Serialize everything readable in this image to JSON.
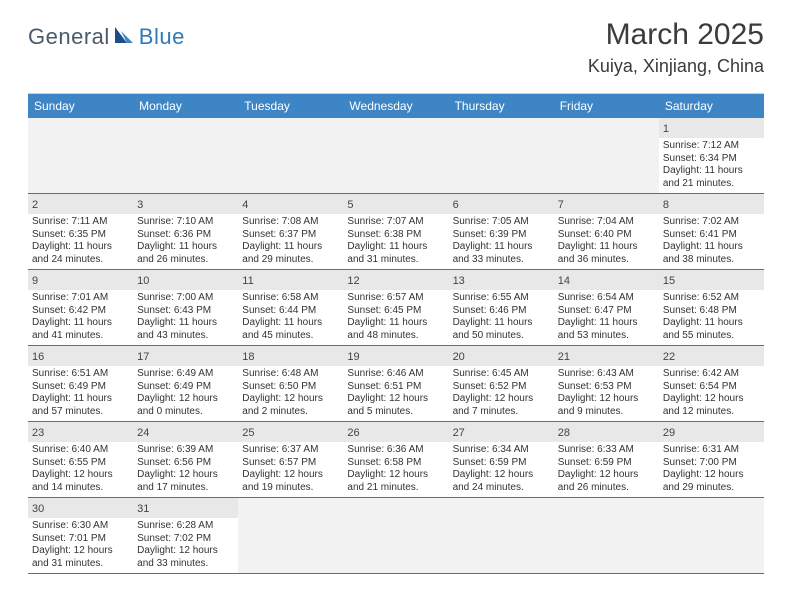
{
  "logo": {
    "text1": "General",
    "text2": "Blue"
  },
  "title": "March 2025",
  "location": "Kuiya, Xinjiang, China",
  "colors": {
    "header_bg": "#3e85c6",
    "header_text": "#ffffff",
    "cell_border": "#2f7ab8",
    "daynum_bg": "#e8e8e8",
    "blank_bg": "#f2f2f2",
    "logo_gray": "#4a5a6a",
    "logo_blue": "#2f7ab8"
  },
  "dow": [
    "Sunday",
    "Monday",
    "Tuesday",
    "Wednesday",
    "Thursday",
    "Friday",
    "Saturday"
  ],
  "weeks": [
    [
      {
        "blank": true
      },
      {
        "blank": true
      },
      {
        "blank": true
      },
      {
        "blank": true
      },
      {
        "blank": true
      },
      {
        "blank": true
      },
      {
        "day": "1",
        "sunrise": "Sunrise: 7:12 AM",
        "sunset": "Sunset: 6:34 PM",
        "daylight": "Daylight: 11 hours and 21 minutes."
      }
    ],
    [
      {
        "day": "2",
        "sunrise": "Sunrise: 7:11 AM",
        "sunset": "Sunset: 6:35 PM",
        "daylight": "Daylight: 11 hours and 24 minutes."
      },
      {
        "day": "3",
        "sunrise": "Sunrise: 7:10 AM",
        "sunset": "Sunset: 6:36 PM",
        "daylight": "Daylight: 11 hours and 26 minutes."
      },
      {
        "day": "4",
        "sunrise": "Sunrise: 7:08 AM",
        "sunset": "Sunset: 6:37 PM",
        "daylight": "Daylight: 11 hours and 29 minutes."
      },
      {
        "day": "5",
        "sunrise": "Sunrise: 7:07 AM",
        "sunset": "Sunset: 6:38 PM",
        "daylight": "Daylight: 11 hours and 31 minutes."
      },
      {
        "day": "6",
        "sunrise": "Sunrise: 7:05 AM",
        "sunset": "Sunset: 6:39 PM",
        "daylight": "Daylight: 11 hours and 33 minutes."
      },
      {
        "day": "7",
        "sunrise": "Sunrise: 7:04 AM",
        "sunset": "Sunset: 6:40 PM",
        "daylight": "Daylight: 11 hours and 36 minutes."
      },
      {
        "day": "8",
        "sunrise": "Sunrise: 7:02 AM",
        "sunset": "Sunset: 6:41 PM",
        "daylight": "Daylight: 11 hours and 38 minutes."
      }
    ],
    [
      {
        "day": "9",
        "sunrise": "Sunrise: 7:01 AM",
        "sunset": "Sunset: 6:42 PM",
        "daylight": "Daylight: 11 hours and 41 minutes."
      },
      {
        "day": "10",
        "sunrise": "Sunrise: 7:00 AM",
        "sunset": "Sunset: 6:43 PM",
        "daylight": "Daylight: 11 hours and 43 minutes."
      },
      {
        "day": "11",
        "sunrise": "Sunrise: 6:58 AM",
        "sunset": "Sunset: 6:44 PM",
        "daylight": "Daylight: 11 hours and 45 minutes."
      },
      {
        "day": "12",
        "sunrise": "Sunrise: 6:57 AM",
        "sunset": "Sunset: 6:45 PM",
        "daylight": "Daylight: 11 hours and 48 minutes."
      },
      {
        "day": "13",
        "sunrise": "Sunrise: 6:55 AM",
        "sunset": "Sunset: 6:46 PM",
        "daylight": "Daylight: 11 hours and 50 minutes."
      },
      {
        "day": "14",
        "sunrise": "Sunrise: 6:54 AM",
        "sunset": "Sunset: 6:47 PM",
        "daylight": "Daylight: 11 hours and 53 minutes."
      },
      {
        "day": "15",
        "sunrise": "Sunrise: 6:52 AM",
        "sunset": "Sunset: 6:48 PM",
        "daylight": "Daylight: 11 hours and 55 minutes."
      }
    ],
    [
      {
        "day": "16",
        "sunrise": "Sunrise: 6:51 AM",
        "sunset": "Sunset: 6:49 PM",
        "daylight": "Daylight: 11 hours and 57 minutes."
      },
      {
        "day": "17",
        "sunrise": "Sunrise: 6:49 AM",
        "sunset": "Sunset: 6:49 PM",
        "daylight": "Daylight: 12 hours and 0 minutes."
      },
      {
        "day": "18",
        "sunrise": "Sunrise: 6:48 AM",
        "sunset": "Sunset: 6:50 PM",
        "daylight": "Daylight: 12 hours and 2 minutes."
      },
      {
        "day": "19",
        "sunrise": "Sunrise: 6:46 AM",
        "sunset": "Sunset: 6:51 PM",
        "daylight": "Daylight: 12 hours and 5 minutes."
      },
      {
        "day": "20",
        "sunrise": "Sunrise: 6:45 AM",
        "sunset": "Sunset: 6:52 PM",
        "daylight": "Daylight: 12 hours and 7 minutes."
      },
      {
        "day": "21",
        "sunrise": "Sunrise: 6:43 AM",
        "sunset": "Sunset: 6:53 PM",
        "daylight": "Daylight: 12 hours and 9 minutes."
      },
      {
        "day": "22",
        "sunrise": "Sunrise: 6:42 AM",
        "sunset": "Sunset: 6:54 PM",
        "daylight": "Daylight: 12 hours and 12 minutes."
      }
    ],
    [
      {
        "day": "23",
        "sunrise": "Sunrise: 6:40 AM",
        "sunset": "Sunset: 6:55 PM",
        "daylight": "Daylight: 12 hours and 14 minutes."
      },
      {
        "day": "24",
        "sunrise": "Sunrise: 6:39 AM",
        "sunset": "Sunset: 6:56 PM",
        "daylight": "Daylight: 12 hours and 17 minutes."
      },
      {
        "day": "25",
        "sunrise": "Sunrise: 6:37 AM",
        "sunset": "Sunset: 6:57 PM",
        "daylight": "Daylight: 12 hours and 19 minutes."
      },
      {
        "day": "26",
        "sunrise": "Sunrise: 6:36 AM",
        "sunset": "Sunset: 6:58 PM",
        "daylight": "Daylight: 12 hours and 21 minutes."
      },
      {
        "day": "27",
        "sunrise": "Sunrise: 6:34 AM",
        "sunset": "Sunset: 6:59 PM",
        "daylight": "Daylight: 12 hours and 24 minutes."
      },
      {
        "day": "28",
        "sunrise": "Sunrise: 6:33 AM",
        "sunset": "Sunset: 6:59 PM",
        "daylight": "Daylight: 12 hours and 26 minutes."
      },
      {
        "day": "29",
        "sunrise": "Sunrise: 6:31 AM",
        "sunset": "Sunset: 7:00 PM",
        "daylight": "Daylight: 12 hours and 29 minutes."
      }
    ],
    [
      {
        "day": "30",
        "sunrise": "Sunrise: 6:30 AM",
        "sunset": "Sunset: 7:01 PM",
        "daylight": "Daylight: 12 hours and 31 minutes."
      },
      {
        "day": "31",
        "sunrise": "Sunrise: 6:28 AM",
        "sunset": "Sunset: 7:02 PM",
        "daylight": "Daylight: 12 hours and 33 minutes."
      },
      {
        "blank": true
      },
      {
        "blank": true
      },
      {
        "blank": true
      },
      {
        "blank": true
      },
      {
        "blank": true
      }
    ]
  ]
}
